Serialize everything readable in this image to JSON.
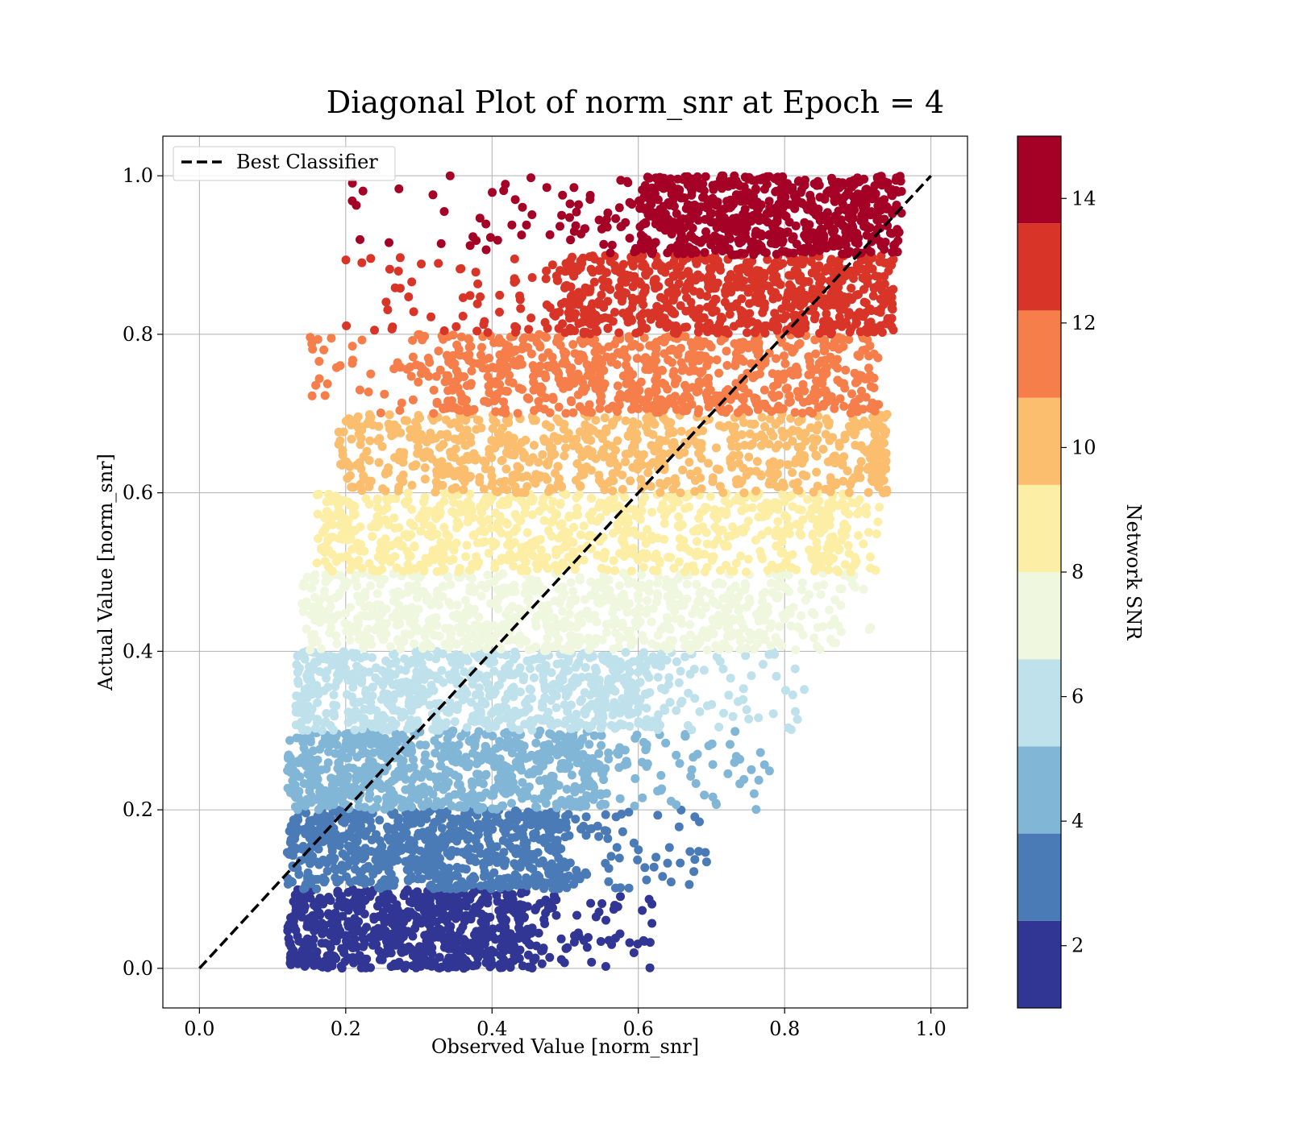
{
  "chart_data": {
    "type": "scatter",
    "title": "Diagonal Plot of norm_snr at Epoch = 4",
    "xlabel": "Observed Value [norm_snr]",
    "ylabel": "Actual Value [norm_snr]",
    "xlim": [
      -0.05,
      1.05
    ],
    "ylim": [
      -0.05,
      1.05
    ],
    "xticks": [
      0.0,
      0.2,
      0.4,
      0.6,
      0.8,
      1.0
    ],
    "yticks": [
      0.0,
      0.2,
      0.4,
      0.6,
      0.8,
      1.0
    ],
    "xtick_labels": [
      "0.0",
      "0.2",
      "0.4",
      "0.6",
      "0.8",
      "1.0"
    ],
    "ytick_labels": [
      "0.0",
      "0.2",
      "0.4",
      "0.6",
      "0.8",
      "1.0"
    ],
    "grid": true,
    "legend": {
      "placement": "top-left",
      "entries": [
        {
          "label": "Best Classifier",
          "style": "dashed",
          "color": "#000000"
        }
      ]
    },
    "reference_line": {
      "label": "Best Classifier",
      "x": [
        0.0,
        1.0
      ],
      "y": [
        0.0,
        1.0
      ]
    },
    "colorbar": {
      "label": "Network SNR",
      "range": [
        1,
        15
      ],
      "ticks": [
        2,
        4,
        6,
        8,
        10,
        12,
        14
      ],
      "tick_labels": [
        "2",
        "4",
        "6",
        "8",
        "10",
        "12",
        "14"
      ],
      "colors": [
        "#313695",
        "#4a7bb7",
        "#82b6d7",
        "#bfe1ec",
        "#eff7df",
        "#fdeea5",
        "#fbbe6f",
        "#f57e4b",
        "#d83528",
        "#a50026"
      ]
    },
    "bands": [
      {
        "y": [
          0.0,
          0.1
        ],
        "x_core": [
          0.12,
          0.45
        ],
        "x_tail": 0.62,
        "color": "#313695"
      },
      {
        "y": [
          0.1,
          0.2
        ],
        "x_core": [
          0.12,
          0.5
        ],
        "x_tail": 0.7,
        "color": "#4a7bb7"
      },
      {
        "y": [
          0.2,
          0.3
        ],
        "x_core": [
          0.12,
          0.55
        ],
        "x_tail": 0.78,
        "color": "#82b6d7"
      },
      {
        "y": [
          0.3,
          0.4
        ],
        "x_core": [
          0.13,
          0.62
        ],
        "x_tail": 0.83,
        "color": "#bfe1ec"
      },
      {
        "y": [
          0.4,
          0.5
        ],
        "x_core": [
          0.14,
          0.78
        ],
        "x_tail": 0.92,
        "color": "#eff7df"
      },
      {
        "y": [
          0.5,
          0.6
        ],
        "x_core": [
          0.16,
          0.86
        ],
        "x_tail": 0.93,
        "color": "#fdeea5"
      },
      {
        "y": [
          0.6,
          0.7
        ],
        "x_core": [
          0.19,
          0.92
        ],
        "x_tail": 0.94,
        "color": "#fbbe6f"
      },
      {
        "y": [
          0.7,
          0.8
        ],
        "x_core": [
          0.34,
          0.93
        ],
        "x_tail": 0.15,
        "color": "#f57e4b"
      },
      {
        "y": [
          0.8,
          0.9
        ],
        "x_core": [
          0.5,
          0.95
        ],
        "x_tail": 0.2,
        "color": "#d83528"
      },
      {
        "y": [
          0.9,
          1.0
        ],
        "x_core": [
          0.6,
          0.96
        ],
        "x_tail": 0.19,
        "color": "#a50026"
      }
    ]
  }
}
